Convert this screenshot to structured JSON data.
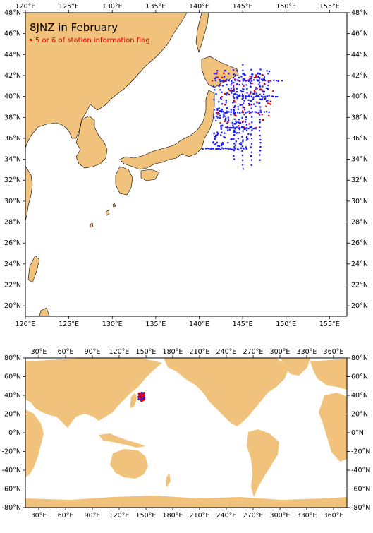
{
  "colors": {
    "land": "#f1c27c",
    "ocean": "#ffffff",
    "frame": "#000000",
    "station_blue": "#1a1aff",
    "station_red": "#e00000"
  },
  "top_map": {
    "title": "8JNZ in February",
    "legend_label": "5 or 6 of station information flag",
    "lon_range": [
      120,
      157
    ],
    "lat_range": [
      19,
      48
    ],
    "lon_ticks": [
      "120°E",
      "125°E",
      "130°E",
      "135°E",
      "140°E",
      "145°E",
      "150°E",
      "155°E"
    ],
    "lat_ticks": [
      "20°N",
      "22°N",
      "24°N",
      "26°N",
      "28°N",
      "30°N",
      "32°N",
      "34°N",
      "36°N",
      "38°N",
      "40°N",
      "42°N",
      "44°N",
      "46°N",
      "48°N"
    ]
  },
  "bottom_map": {
    "lon_range": [
      15,
      375
    ],
    "lat_range": [
      -80,
      80
    ],
    "lon_ticks": [
      "30°E",
      "60°E",
      "90°E",
      "120°E",
      "150°E",
      "180°E",
      "210°E",
      "240°E",
      "270°E",
      "300°E",
      "330°E",
      "360°E"
    ],
    "lat_ticks": [
      "-80°N",
      "-60°N",
      "-40°N",
      "-20°N",
      "0°N",
      "20°N",
      "40°N",
      "60°N",
      "80°N"
    ]
  }
}
